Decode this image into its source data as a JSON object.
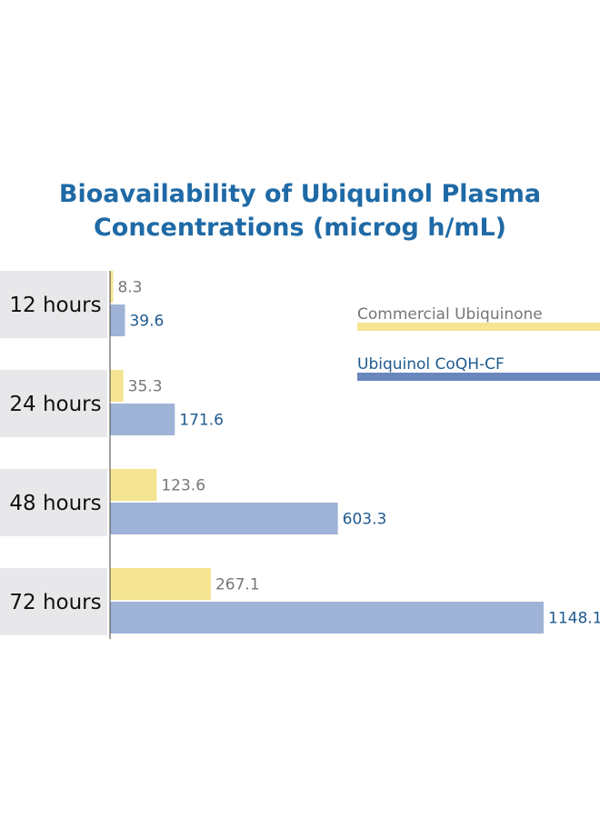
{
  "chart_data": {
    "type": "bar",
    "orientation": "horizontal",
    "title": "Bioavailability of Ubiquinol Plasma Concentrations (microg h/mL)",
    "title_lines": [
      "Bioavailability of Ubiquinol Plasma",
      "Concentrations (microg h/mL)"
    ],
    "categories": [
      "12 hours",
      "24 hours",
      "48 hours",
      "72 hours"
    ],
    "series": [
      {
        "name": "Commercial Ubiquinone",
        "values": [
          8.3,
          35.3,
          123.6,
          267.1
        ],
        "labels": [
          "8.3",
          "35.3",
          "123.6",
          "267.1"
        ],
        "color": "#f5e491",
        "label_color": "#777777"
      },
      {
        "name": "Ubiquinol CoQH-CF",
        "values": [
          39.6,
          171.6,
          603.3,
          1148.1
        ],
        "labels": [
          "39.6",
          "171.6",
          "603.3",
          "1148.1"
        ],
        "color": "#9fb3d6",
        "label_color": "#1f5a8f"
      }
    ],
    "xlim": [
      0,
      1200
    ],
    "grid": false,
    "legend_position": "right",
    "legend_swatch_colors": [
      "#f5e491",
      "#6a87bd"
    ],
    "category_band_color": "#e8e8ea",
    "title_color": "#1f6aa6"
  }
}
